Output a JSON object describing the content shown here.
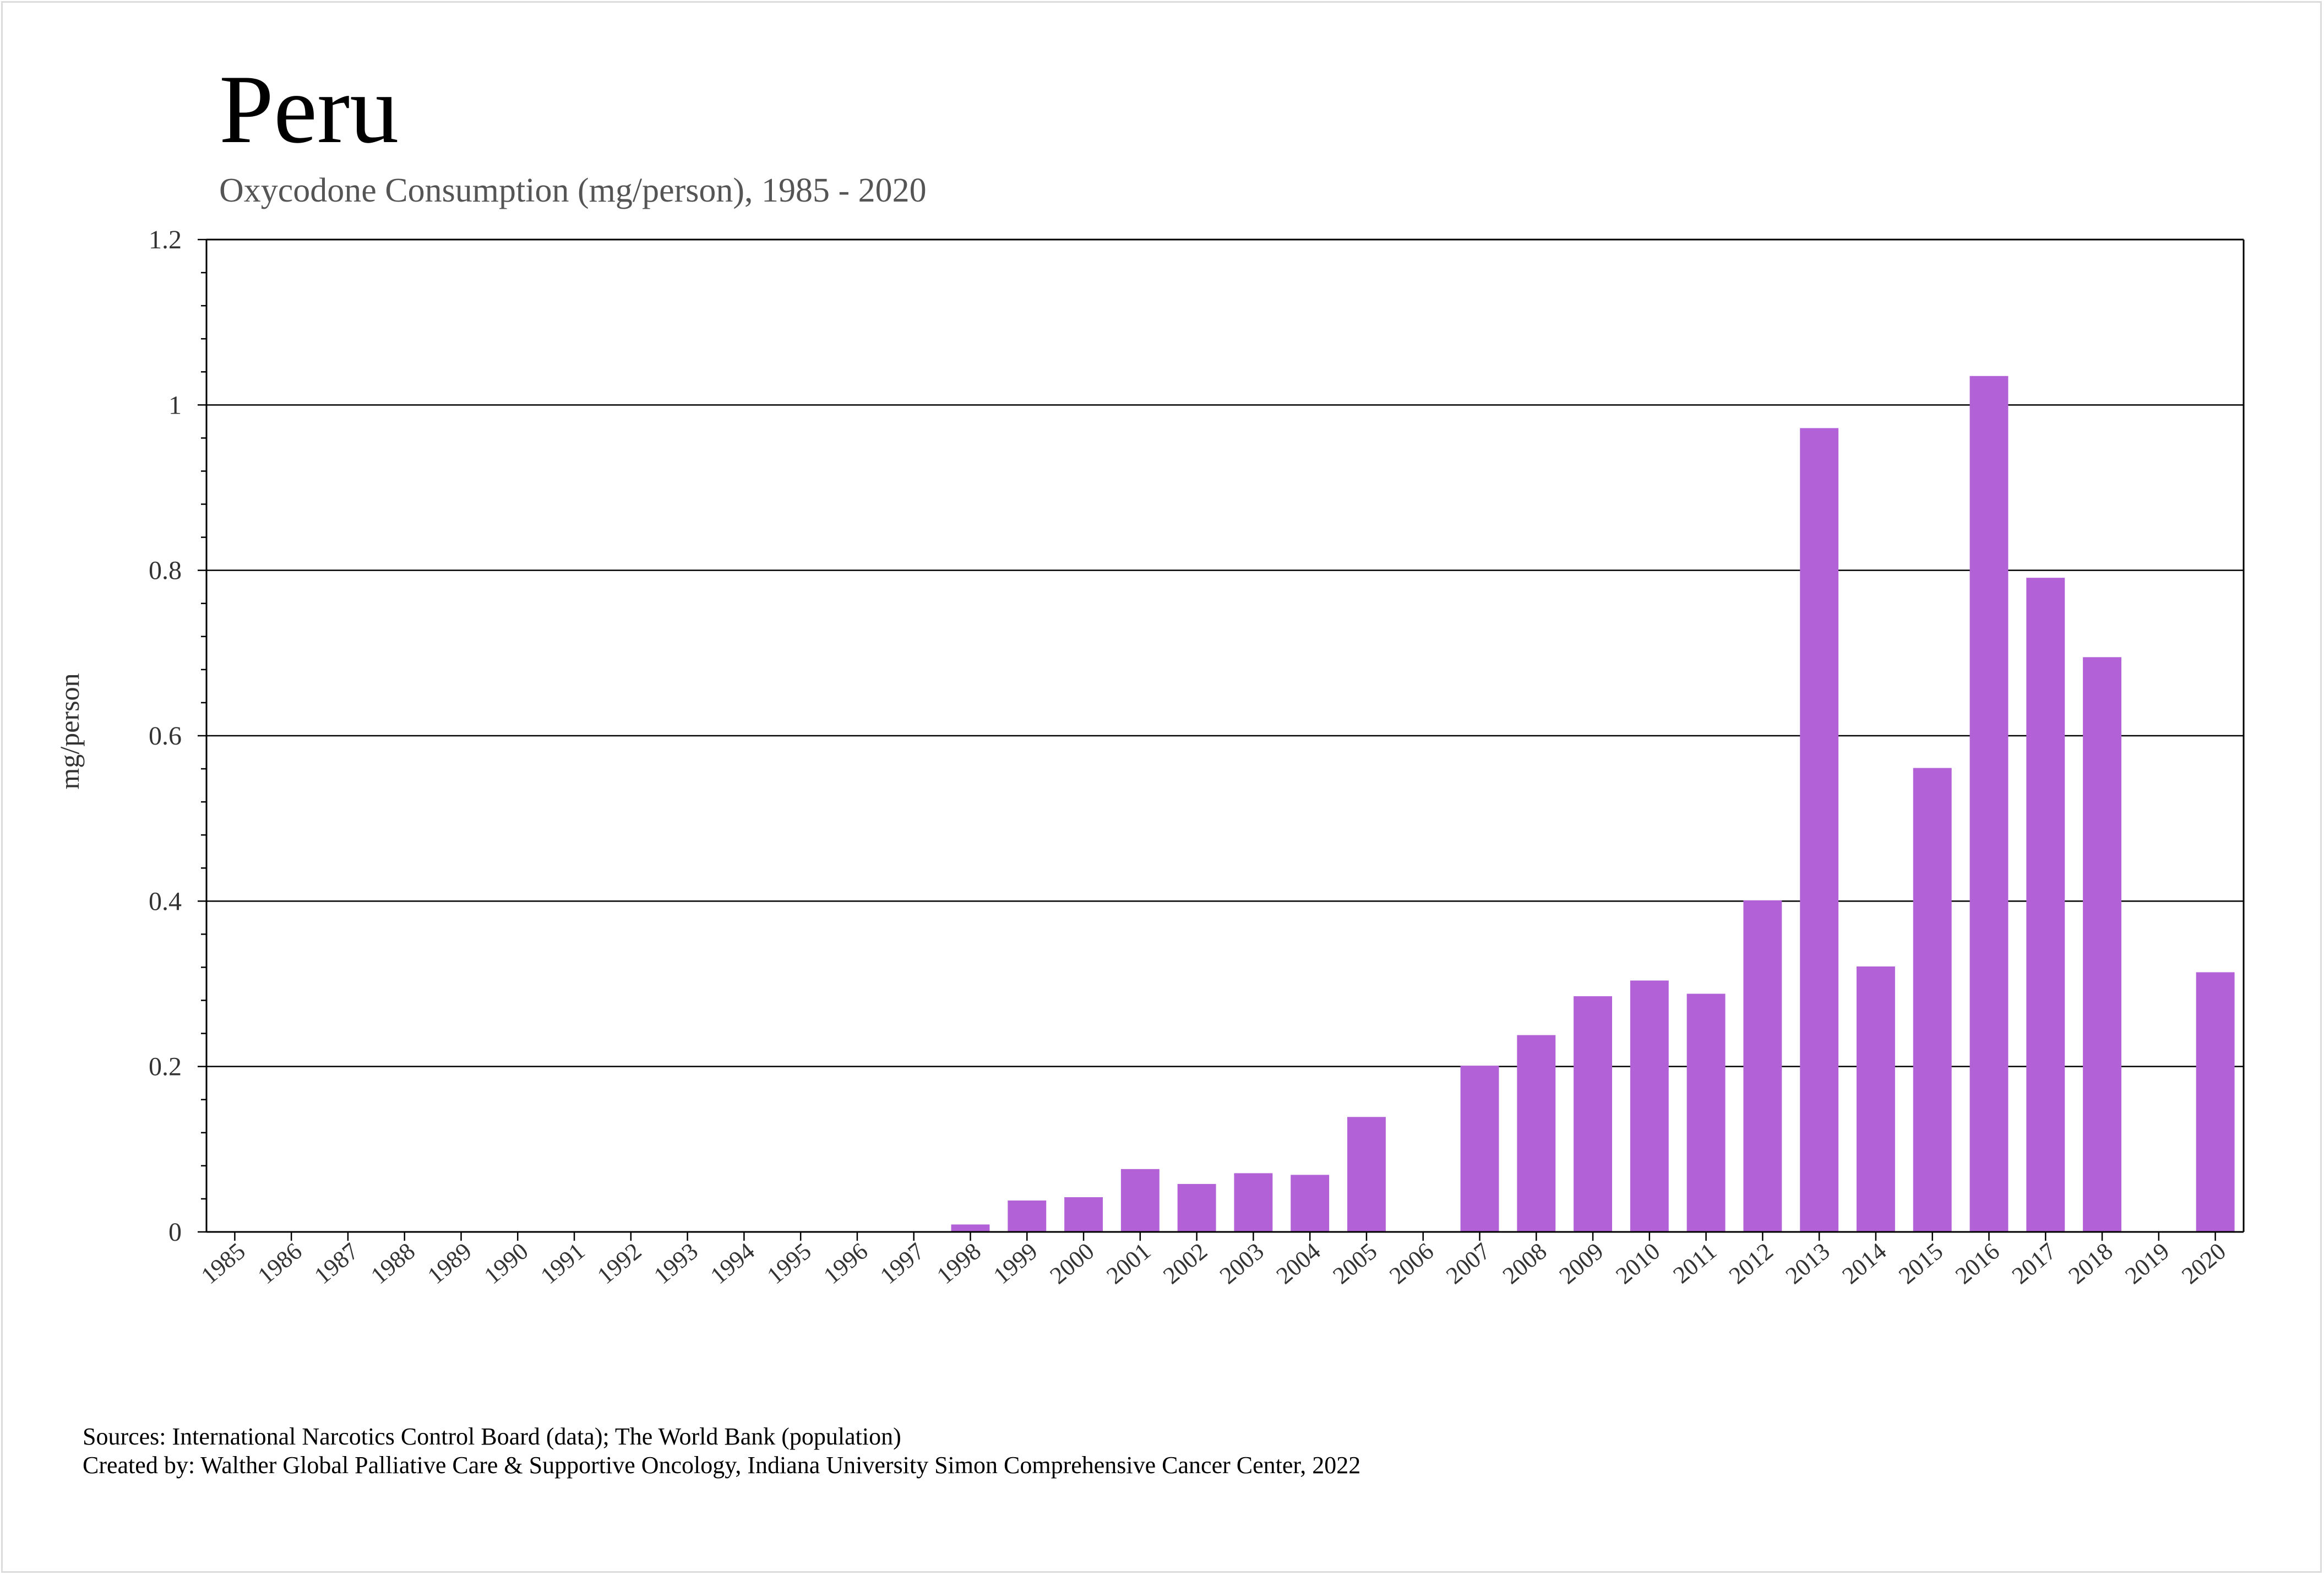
{
  "chart_data": {
    "type": "bar",
    "title": "Peru",
    "subtitle": "Oxycodone Consumption (mg/person), 1985 - 2020",
    "xlabel": "",
    "ylabel": "mg/person",
    "ylim": [
      0,
      1.2
    ],
    "yticks": [
      "0",
      "0.2",
      "0.4",
      "0.6",
      "0.8",
      "1",
      "1.2"
    ],
    "grid": "horizontal major",
    "bar_color": "#b262d6",
    "categories": [
      "1985",
      "1986",
      "1987",
      "1988",
      "1989",
      "1990",
      "1991",
      "1992",
      "1993",
      "1994",
      "1995",
      "1996",
      "1997",
      "1998",
      "1999",
      "2000",
      "2001",
      "2002",
      "2003",
      "2004",
      "2005",
      "2006",
      "2007",
      "2008",
      "2009",
      "2010",
      "2011",
      "2012",
      "2013",
      "2014",
      "2015",
      "2016",
      "2017",
      "2018",
      "2019",
      "2020"
    ],
    "values": [
      0,
      0,
      0,
      0,
      0,
      0,
      0,
      0,
      0,
      0,
      0,
      0,
      0,
      0.009,
      0.038,
      0.042,
      0.076,
      0.058,
      0.071,
      0.069,
      0.139,
      0,
      0.201,
      0.238,
      0.285,
      0.304,
      0.288,
      0.401,
      0.972,
      0.321,
      0.561,
      1.035,
      0.791,
      0.695,
      0,
      0.314
    ]
  },
  "footer": {
    "sources": "Sources: International Narcotics Control Board (data); The World Bank (population)",
    "created_by": "Created by: Walther Global Palliative Care & Supportive Oncology, Indiana University Simon Comprehensive Cancer Center, 2022"
  }
}
